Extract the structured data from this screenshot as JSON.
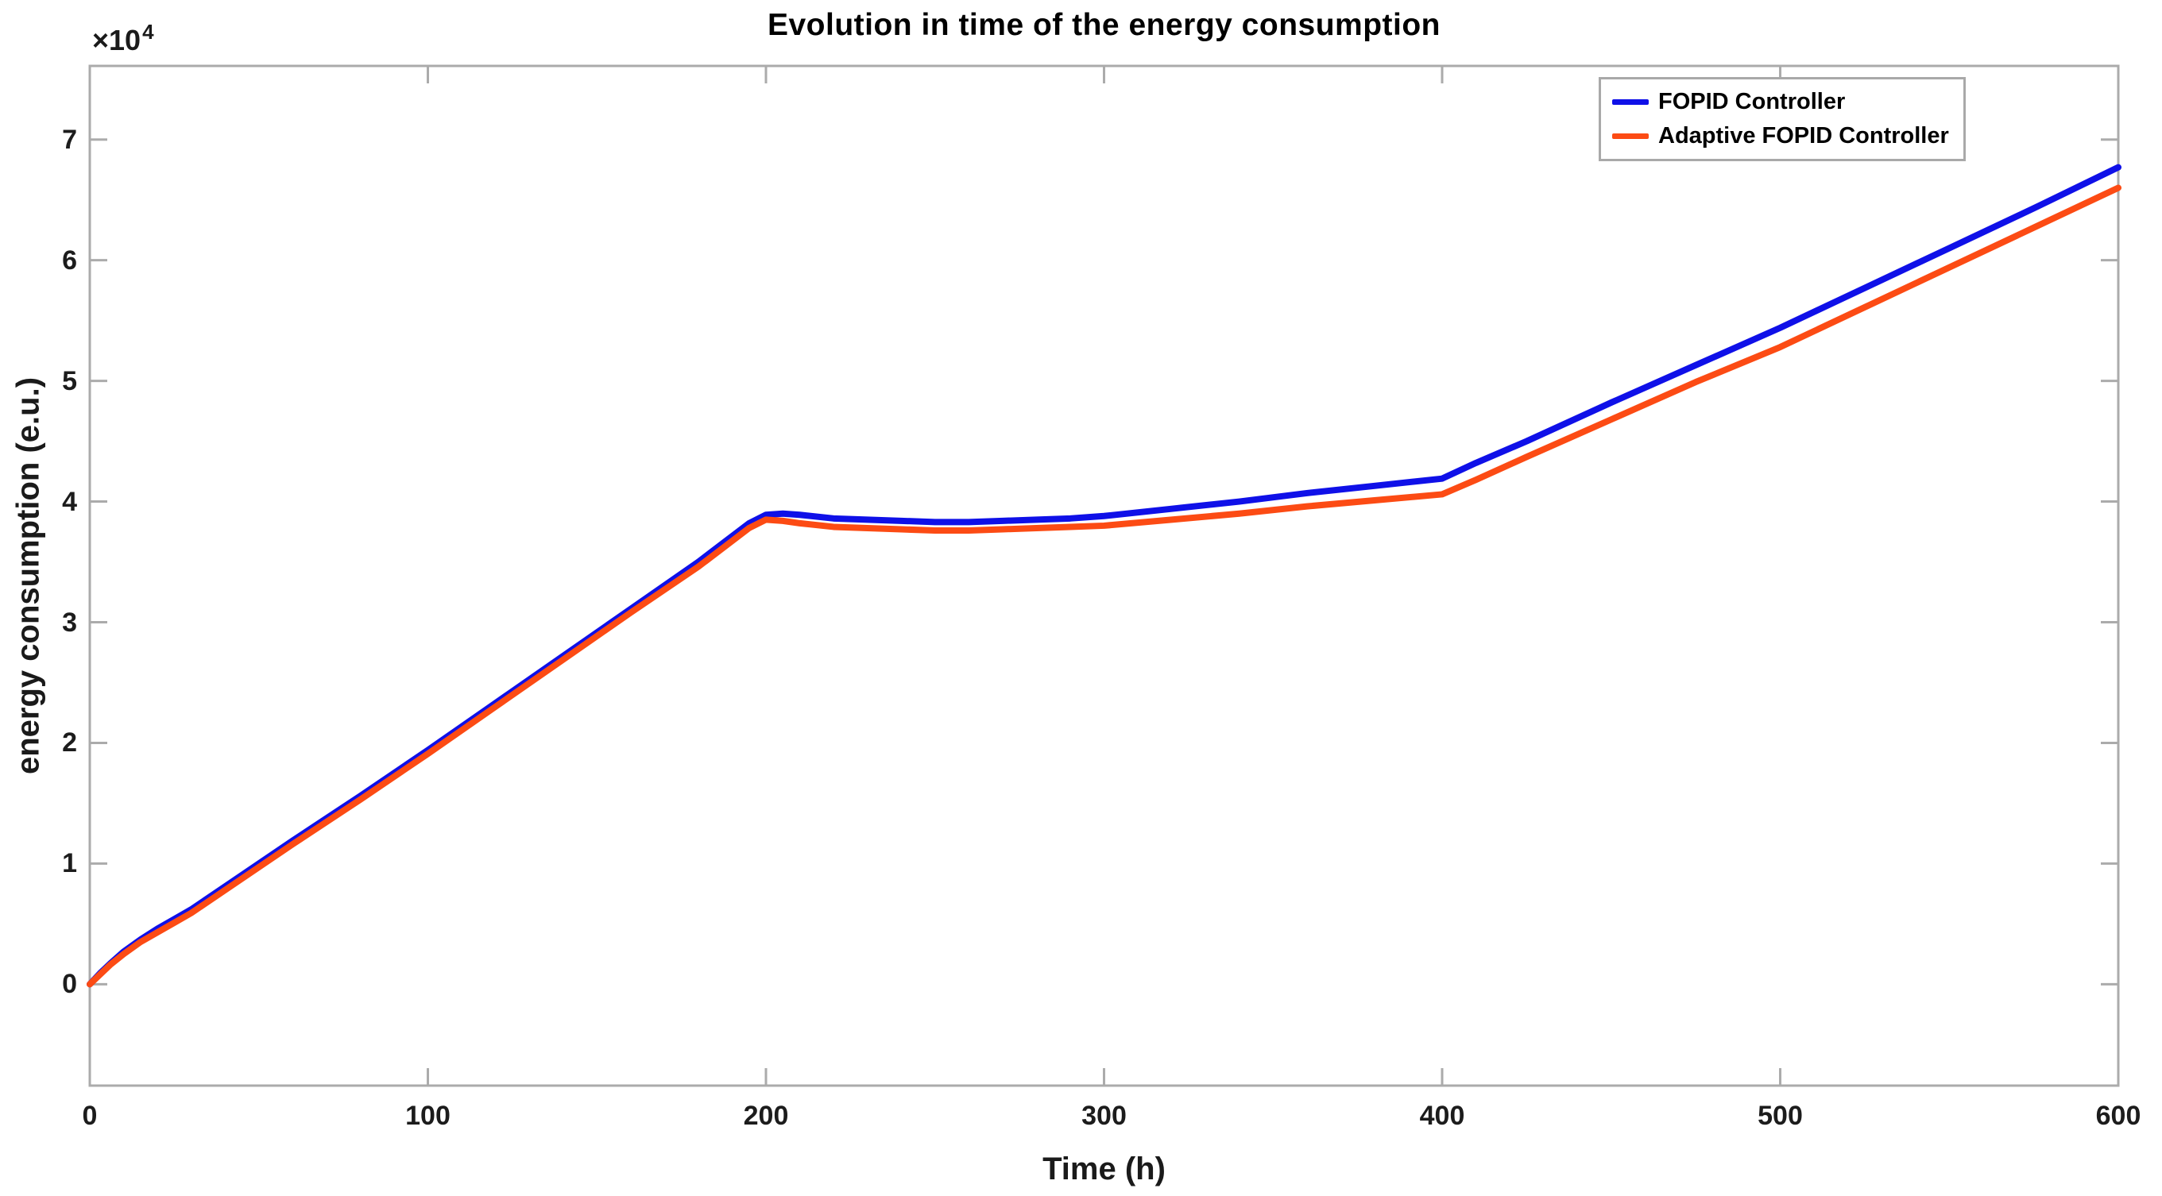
{
  "figure": {
    "title": "Evolution in time of the energy consumption",
    "xlabel": "Time (h)",
    "ylabel": "energy consumption (e.u.)",
    "y_exponent_base": "×10",
    "y_exponent_power": "4"
  },
  "legend": {
    "position": "top-right",
    "items": [
      {
        "label": "FOPID Controller",
        "color": "#0f10e8"
      },
      {
        "label": "Adaptive FOPID Controller",
        "color": "#fc4b14"
      }
    ]
  },
  "colors": {
    "background": "#ffffff",
    "axis": "#ababab",
    "tick_text": "#1c1c1c",
    "title_text": "#000000",
    "fopid_blue": "#0f10e8",
    "adaptive_orange": "#fc4b14"
  },
  "chart_data": {
    "type": "line",
    "title": "Evolution in time of the energy consumption",
    "xlabel": "Time (h)",
    "ylabel": "energy consumption (e.u.)",
    "y_unit_multiplier": 10000,
    "y_exponent_label": "×10⁴",
    "grid": false,
    "box": true,
    "legend_position": "top-right",
    "xlim": [
      0,
      600
    ],
    "ylim": [
      -0.84,
      7.61
    ],
    "x_ticks": [
      0,
      100,
      200,
      300,
      400,
      500,
      600
    ],
    "x_tick_labels": [
      "0",
      "100",
      "200",
      "300",
      "400",
      "500",
      "600"
    ],
    "y_ticks": [
      0,
      1,
      2,
      3,
      4,
      5,
      6,
      7
    ],
    "y_tick_labels": [
      "0",
      "1",
      "2",
      "3",
      "4",
      "5",
      "6",
      "7"
    ],
    "x": [
      0,
      3,
      6,
      10,
      15,
      20,
      25,
      30,
      40,
      50,
      60,
      80,
      100,
      120,
      140,
      160,
      180,
      195,
      200,
      205,
      210,
      220,
      230,
      240,
      250,
      260,
      270,
      280,
      290,
      300,
      320,
      340,
      360,
      380,
      400,
      410,
      425,
      450,
      475,
      500,
      525,
      550,
      575,
      600
    ],
    "series": [
      {
        "name": "FOPID Controller",
        "color": "#0f10e8",
        "values": [
          0,
          0.09,
          0.17,
          0.27,
          0.37,
          0.46,
          0.54,
          0.62,
          0.81,
          1.0,
          1.19,
          1.56,
          1.94,
          2.33,
          2.72,
          3.11,
          3.5,
          3.82,
          3.89,
          3.9,
          3.89,
          3.86,
          3.85,
          3.84,
          3.83,
          3.83,
          3.84,
          3.85,
          3.86,
          3.88,
          3.94,
          4.0,
          4.07,
          4.13,
          4.19,
          4.32,
          4.5,
          4.82,
          5.13,
          5.44,
          5.77,
          6.1,
          6.43,
          6.77
        ]
      },
      {
        "name": "Adaptive FOPID Controller",
        "color": "#fc4b14",
        "values": [
          0,
          0.08,
          0.16,
          0.25,
          0.35,
          0.43,
          0.51,
          0.59,
          0.78,
          0.97,
          1.16,
          1.53,
          1.91,
          2.3,
          2.69,
          3.08,
          3.46,
          3.78,
          3.85,
          3.84,
          3.82,
          3.79,
          3.78,
          3.77,
          3.76,
          3.76,
          3.77,
          3.78,
          3.79,
          3.8,
          3.85,
          3.9,
          3.96,
          4.01,
          4.06,
          4.18,
          4.37,
          4.68,
          4.99,
          5.28,
          5.61,
          5.94,
          6.27,
          6.6
        ]
      }
    ]
  }
}
